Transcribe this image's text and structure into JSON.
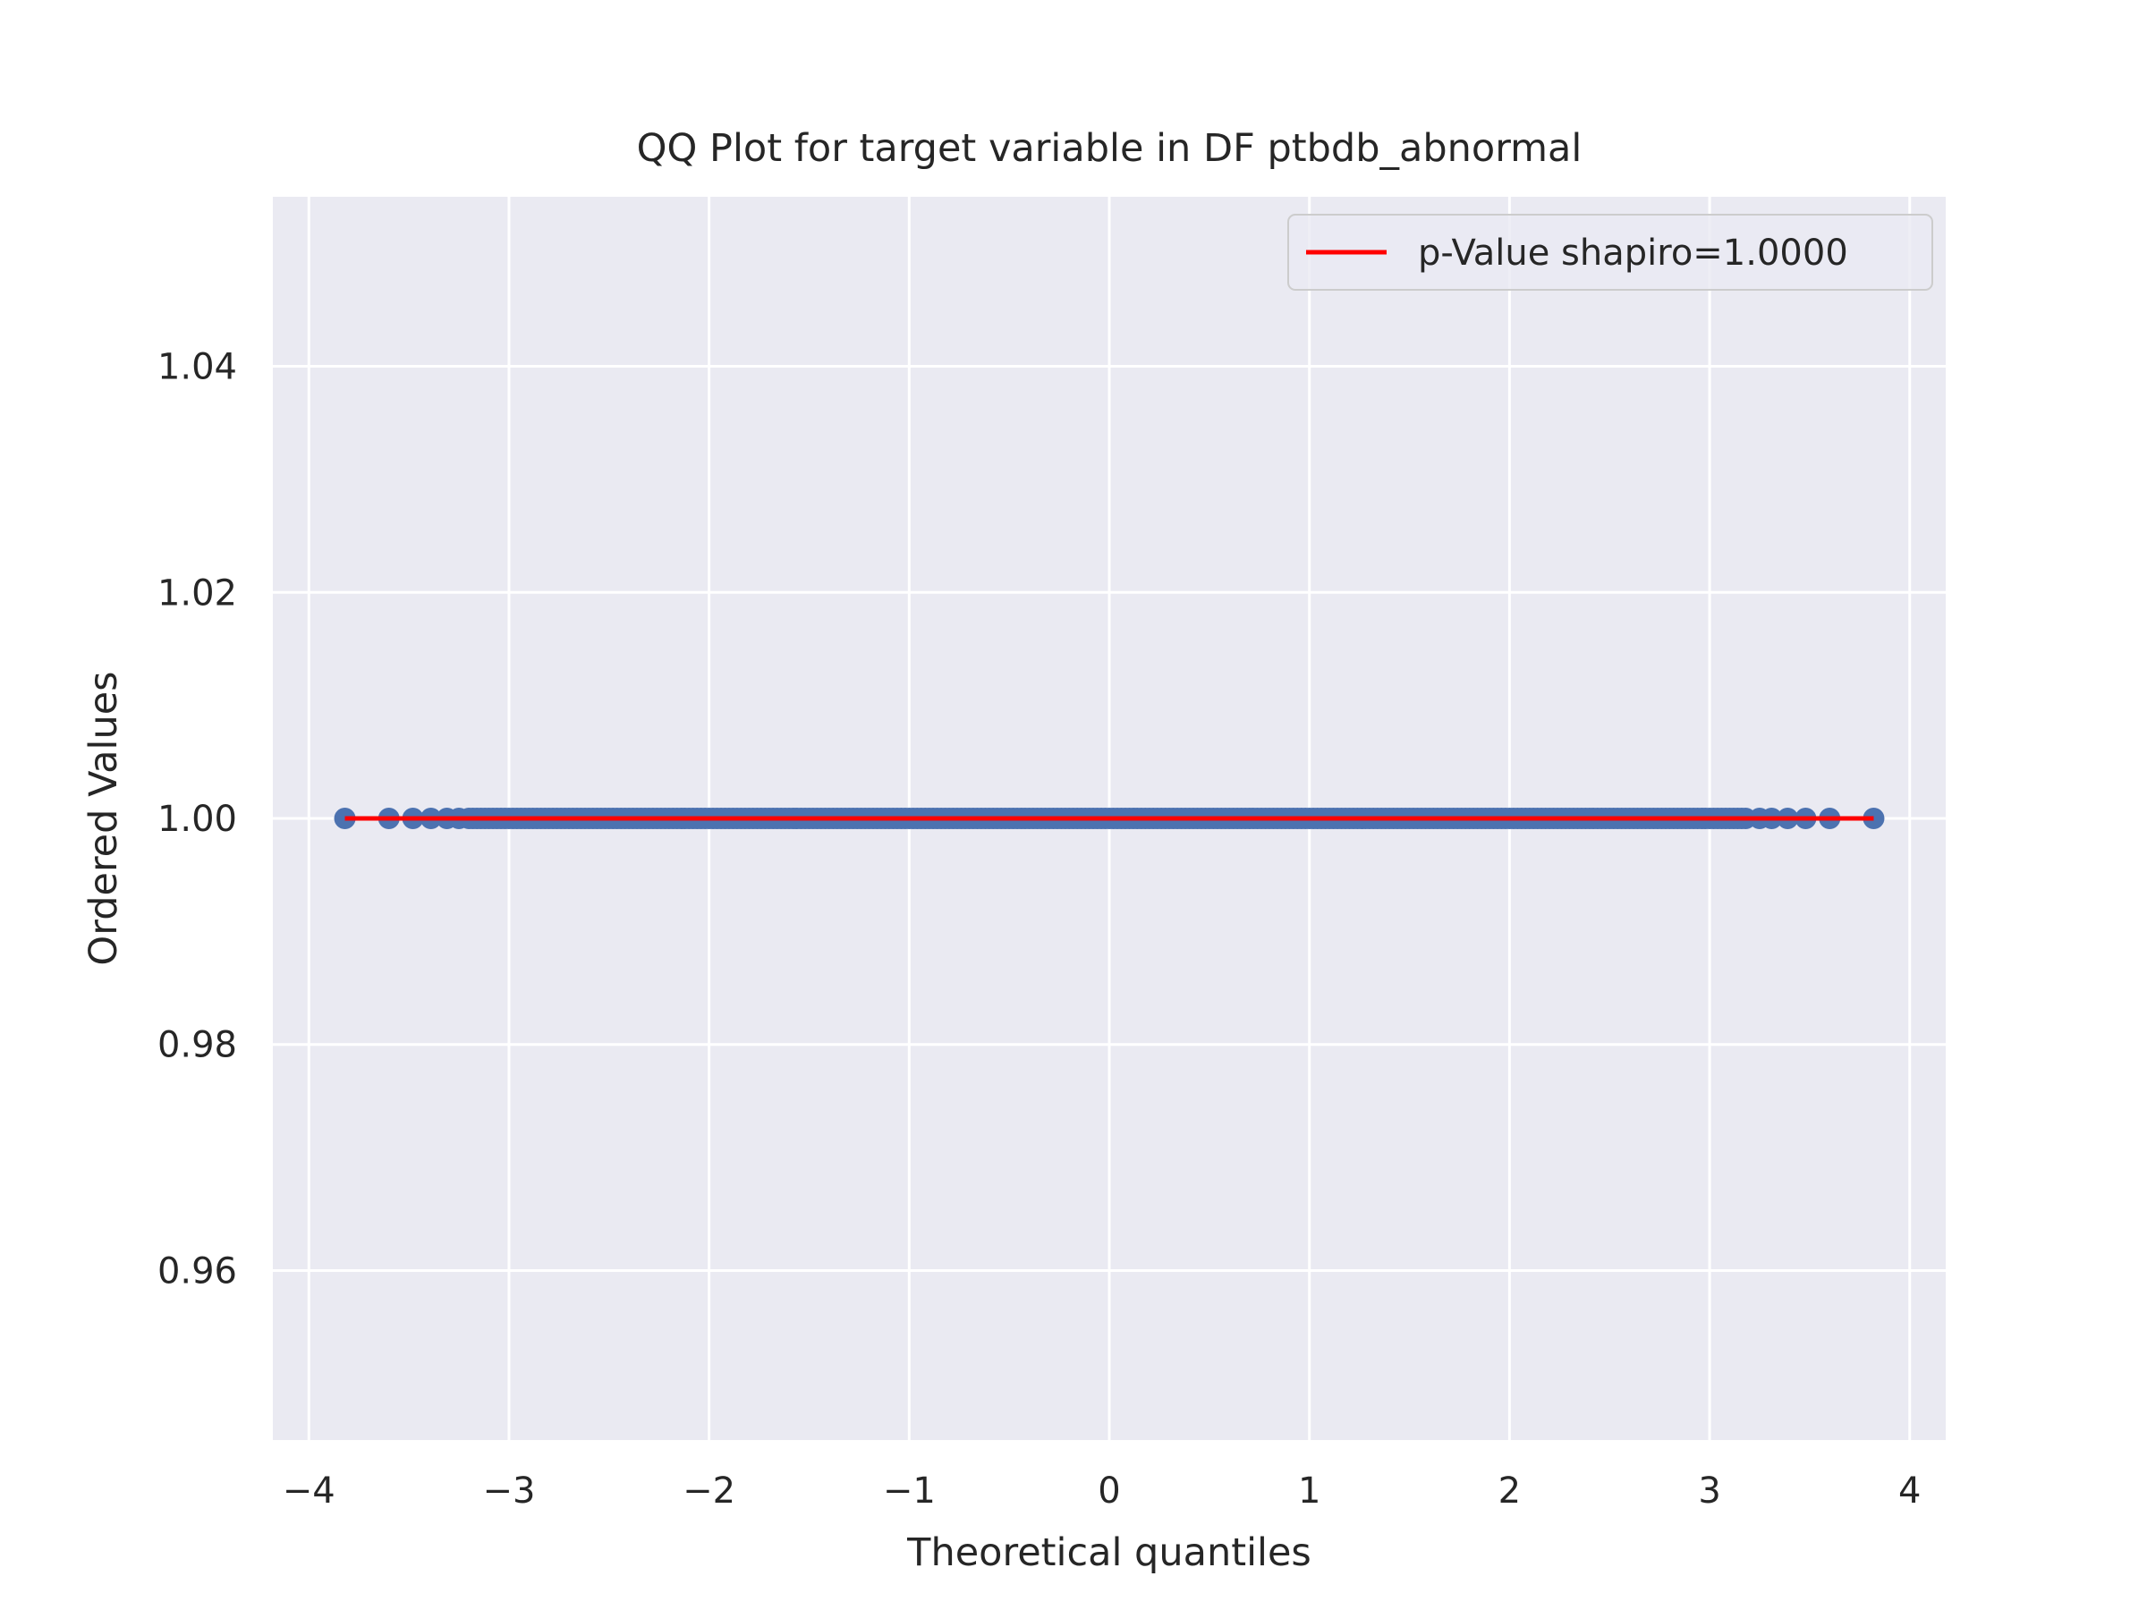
{
  "chart_data": {
    "type": "scatter",
    "title": "QQ Plot for target variable in DF ptbdb_abnormal",
    "xlabel": "Theoretical quantiles",
    "ylabel": "Ordered Values",
    "xlim": [
      -4.18,
      4.18
    ],
    "ylim": [
      0.945,
      1.055
    ],
    "x_ticks": [
      -4,
      -3,
      -2,
      -1,
      0,
      1,
      2,
      3,
      4
    ],
    "x_tick_labels": [
      "−4",
      "−3",
      "−2",
      "−1",
      "0",
      "1",
      "2",
      "3",
      "4"
    ],
    "y_ticks": [
      0.96,
      0.98,
      1.0,
      1.02,
      1.04
    ],
    "y_tick_labels": [
      "0.96",
      "0.98",
      "1.00",
      "1.02",
      "1.04"
    ],
    "grid": true,
    "legend_position": "top-right",
    "series": [
      {
        "kind": "points",
        "color": "#4c72b0",
        "x_range": [
          -3.82,
          3.82
        ],
        "y_value": 1.0,
        "sample_x": [
          -3.82,
          -3.6,
          -3.48,
          -3.39,
          -3.31,
          -3.25,
          3.25,
          3.31,
          3.39,
          3.48,
          3.6,
          3.82
        ]
      },
      {
        "kind": "line",
        "name": "p-Value shapiro=1.0000",
        "color": "#ff0000",
        "x": [
          -3.82,
          3.82
        ],
        "y": [
          1.0,
          1.0
        ]
      }
    ],
    "background_color": "#eaeaf2",
    "grid_color": "#ffffff"
  }
}
